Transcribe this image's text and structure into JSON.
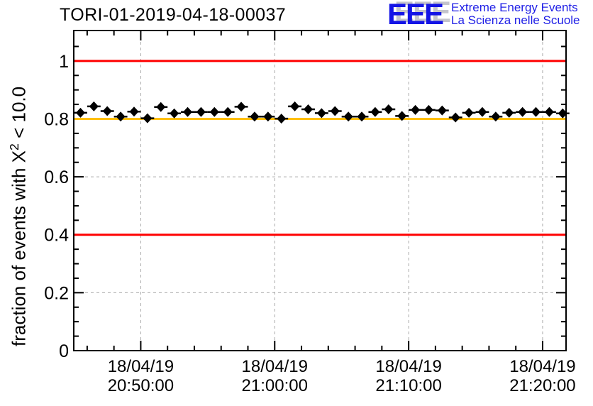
{
  "logo": {
    "acronym": "EEE",
    "line1": "Extreme Energy Events",
    "line2": "La Scienza nelle Scuole",
    "blue": "#1414e6",
    "shadow_gray": "#c4c4cc"
  },
  "chart_data": {
    "type": "scatter",
    "title": "TORI-01-2019-04-18-00037",
    "ylabel_pre": "fraction of events with X",
    "ylabel_sup": "2",
    "ylabel_post": " < 10.0",
    "x_axis": {
      "min": "20:45:00",
      "max": "21:21:45",
      "minor_step_seconds": 120,
      "major_ticks": [
        {
          "date": "18/04/19",
          "time": "20:50:00"
        },
        {
          "date": "18/04/19",
          "time": "21:00:00"
        },
        {
          "date": "18/04/19",
          "time": "21:10:00"
        },
        {
          "date": "18/04/19",
          "time": "21:20:00"
        }
      ]
    },
    "y_axis": {
      "min": 0,
      "max": 1.105,
      "minor_step": 0.05,
      "major_ticks": [
        0,
        0.2,
        0.4,
        0.6,
        0.8,
        1
      ],
      "tick_labels": [
        "0",
        "0.2",
        "0.4",
        "0.6",
        "0.8",
        "1"
      ]
    },
    "grid": {
      "show": true,
      "color": "#aaaaaa",
      "dash": "4,4"
    },
    "ref_lines": [
      {
        "y": 1.0,
        "color": "#ff0000"
      },
      {
        "y": 0.8,
        "color": "#ffbf00"
      },
      {
        "y": 0.4,
        "color": "#ff0000"
      }
    ],
    "series": [
      {
        "name": "fraction of events with chi2 < 10",
        "marker": "filled-diamond",
        "color": "#000000",
        "start_time": "20:45:30",
        "step_seconds": 60,
        "xerr_seconds": 30,
        "yerr": 0.006,
        "values": [
          0.821,
          0.843,
          0.827,
          0.808,
          0.825,
          0.802,
          0.841,
          0.819,
          0.824,
          0.824,
          0.824,
          0.824,
          0.842,
          0.808,
          0.808,
          0.801,
          0.843,
          0.833,
          0.82,
          0.827,
          0.808,
          0.808,
          0.824,
          0.833,
          0.81,
          0.831,
          0.831,
          0.829,
          0.805,
          0.821,
          0.824,
          0.808,
          0.821,
          0.824,
          0.824,
          0.824,
          0.819
        ]
      }
    ]
  }
}
